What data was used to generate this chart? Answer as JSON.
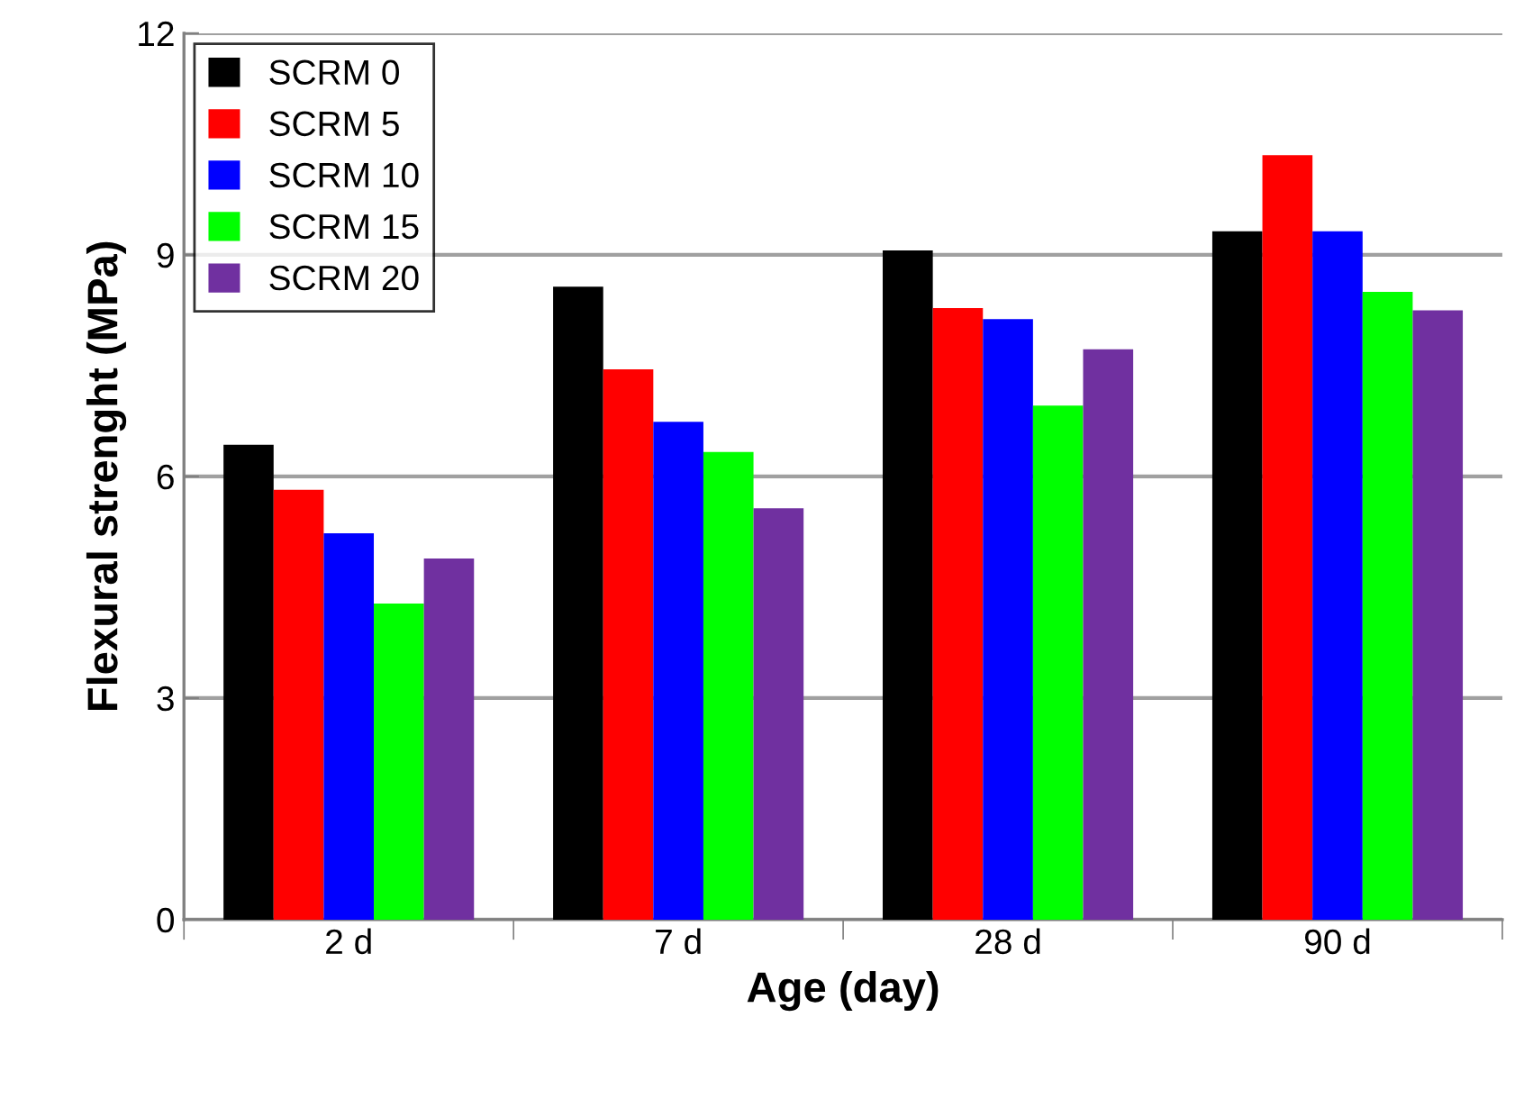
{
  "chart_data": {
    "type": "bar",
    "xlabel": "Age (day)",
    "ylabel": "Flexural strenght (MPa)",
    "categories": [
      "2 d",
      "7 d",
      "28 d",
      "90 d"
    ],
    "series": [
      {
        "name": "SCRM 0",
        "color": "#000000",
        "values": [
          6.43,
          8.57,
          9.06,
          9.32
        ]
      },
      {
        "name": "SCRM 5",
        "color": "#ff0000",
        "values": [
          5.82,
          7.45,
          8.28,
          10.35
        ]
      },
      {
        "name": "SCRM 10",
        "color": "#0000ff",
        "values": [
          5.23,
          6.74,
          8.13,
          9.32
        ]
      },
      {
        "name": "SCRM 15",
        "color": "#00ff00",
        "values": [
          4.28,
          6.33,
          6.96,
          8.5
        ]
      },
      {
        "name": "SCRM 20",
        "color": "#7030a0",
        "values": [
          4.89,
          5.57,
          7.72,
          8.25
        ]
      }
    ],
    "ylim": [
      0,
      12
    ],
    "yticks": [
      0,
      3,
      6,
      9,
      12
    ],
    "grid": "y",
    "legend": "top left"
  }
}
